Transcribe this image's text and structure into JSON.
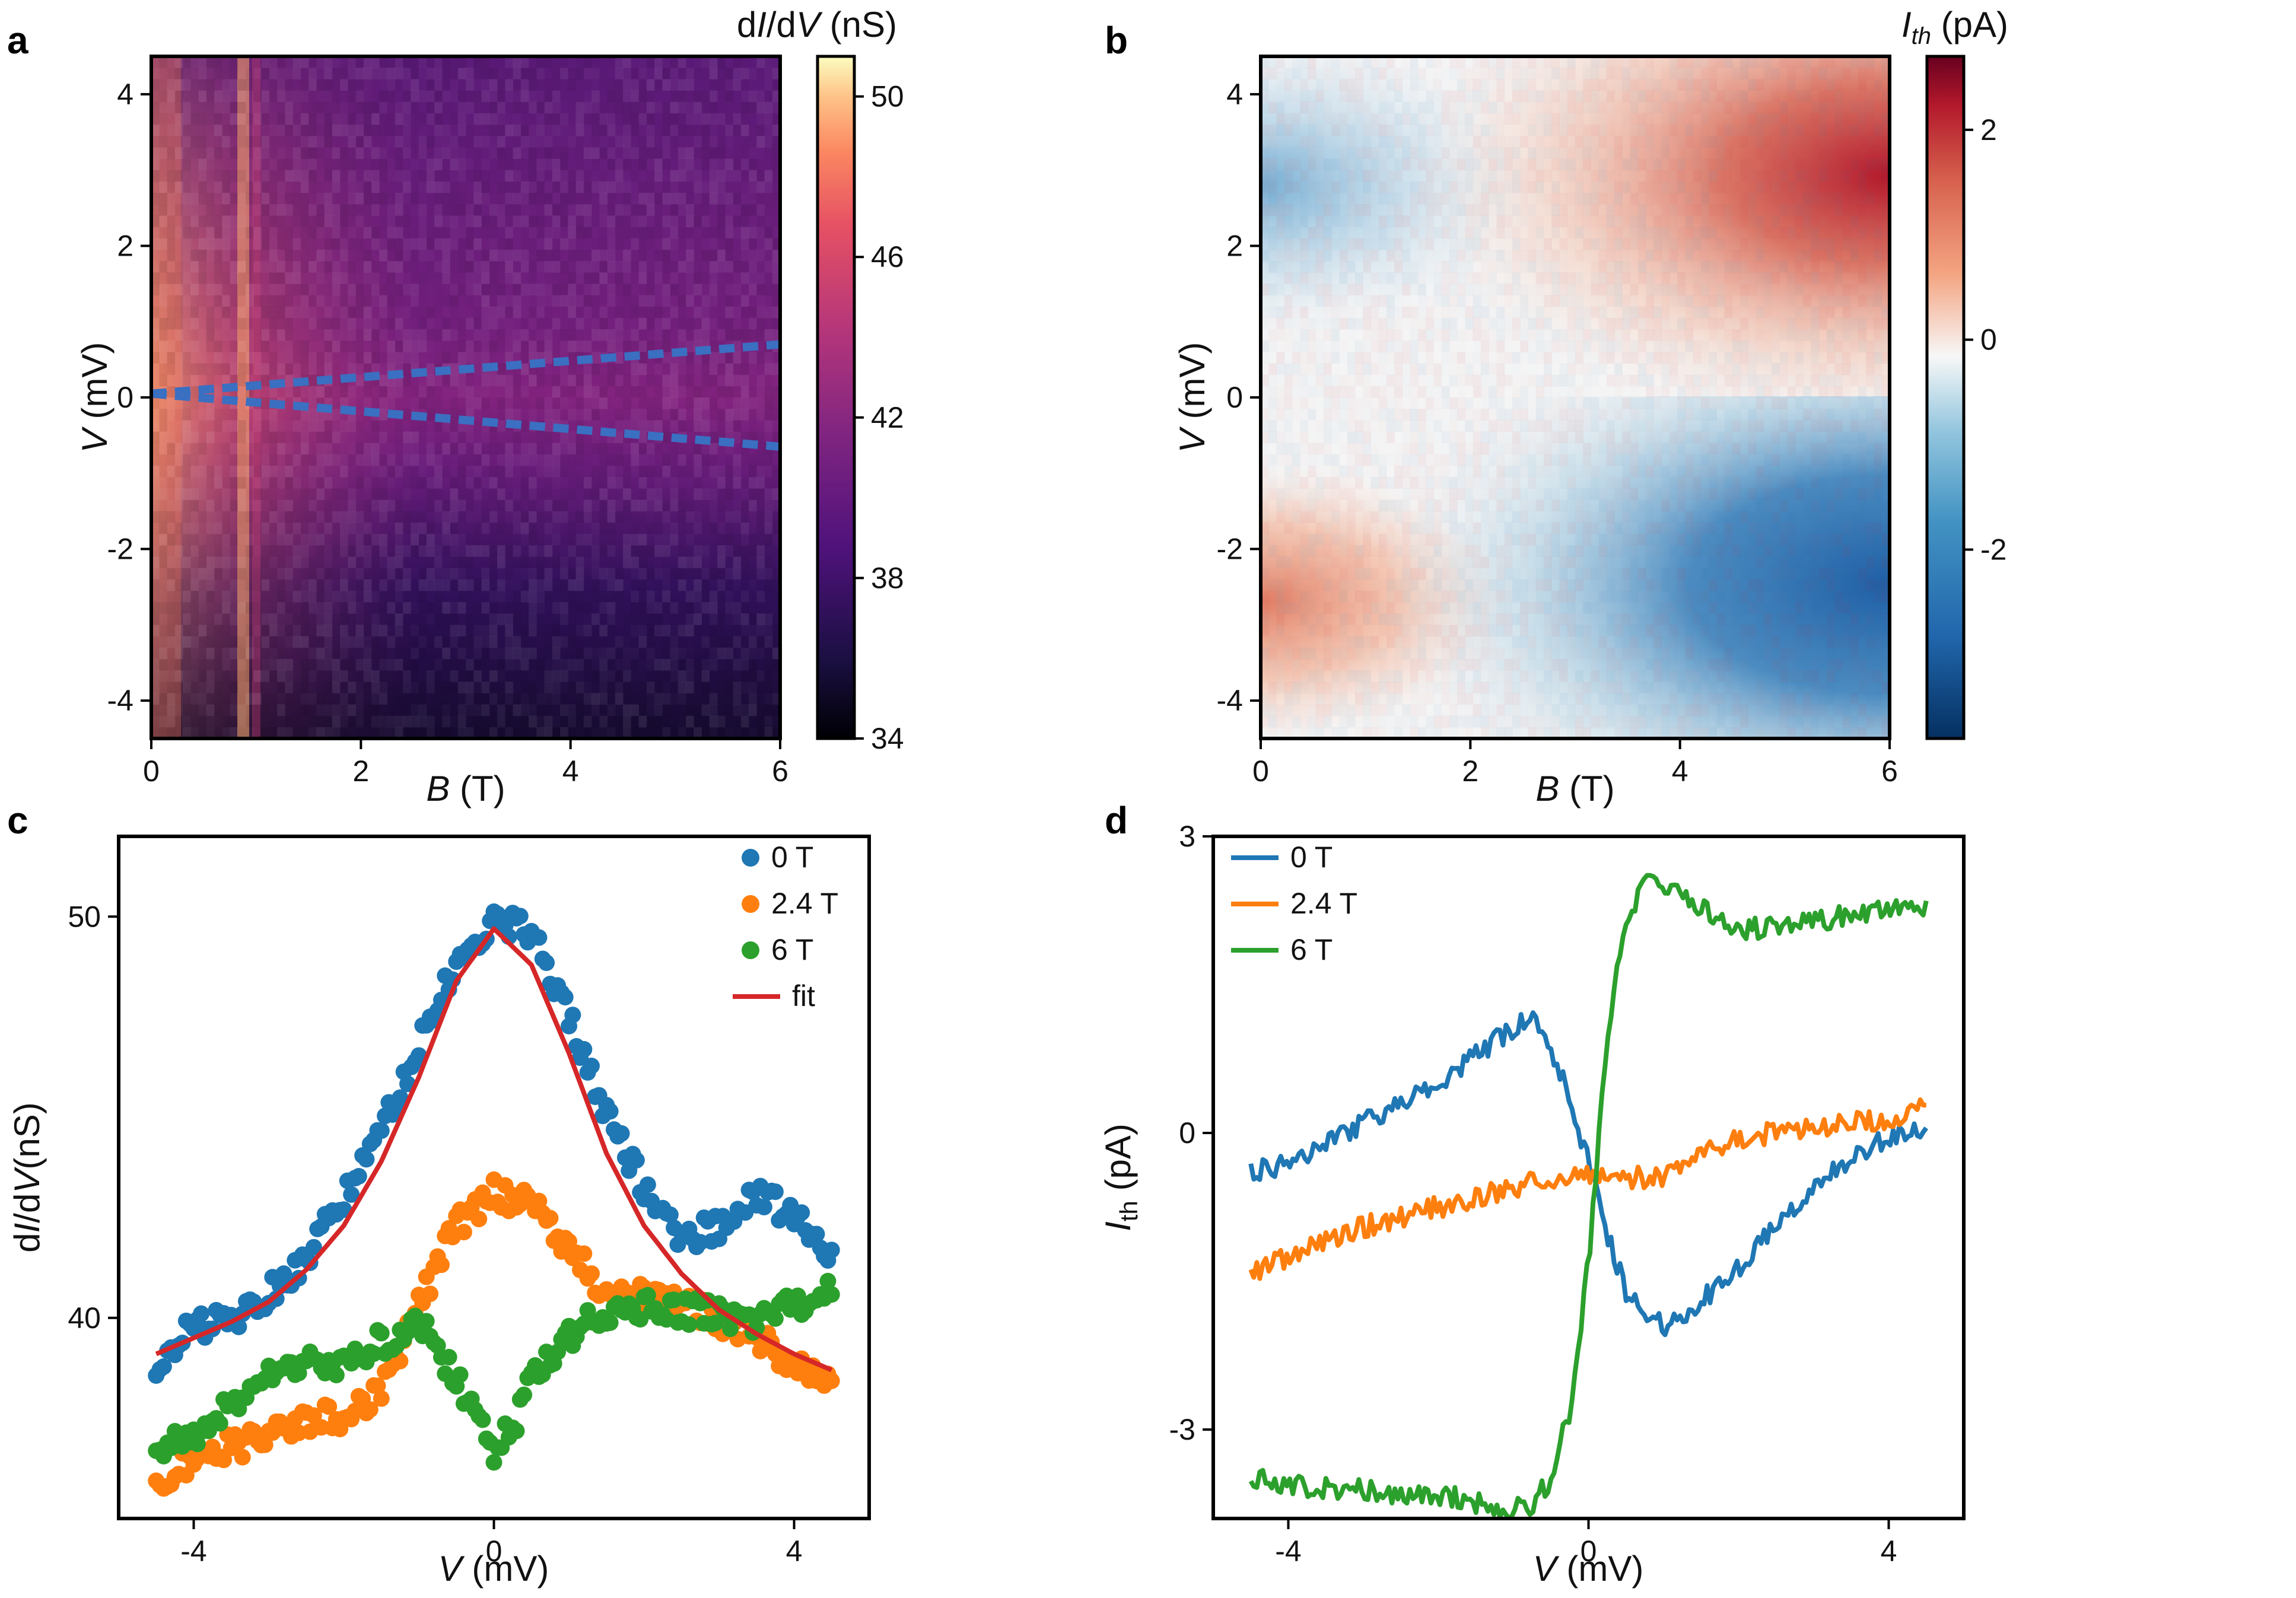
{
  "chart_data": [
    {
      "id": "a",
      "type": "heatmap",
      "panel_label": "a",
      "xlabel_var": "B",
      "xlabel_unit": " (T)",
      "ylabel_var": "V",
      "ylabel_unit": " (mV)",
      "xlim": [
        0,
        6
      ],
      "ylim": [
        -4.5,
        4.5
      ],
      "xticks": [
        0,
        2,
        4,
        6
      ],
      "xtick_labels": [
        "0",
        "2",
        "4",
        "6"
      ],
      "yticks": [
        -4,
        -2,
        0,
        2,
        4
      ],
      "ytick_labels": [
        "-4",
        "-2",
        "0",
        "2",
        "4"
      ],
      "colormap": "magma",
      "colorbar": {
        "label_pre": "d",
        "label_i": "I",
        "label_mid": "/d",
        "label_v": "V",
        "label_post": " (nS)",
        "range": [
          34,
          51
        ],
        "ticks": [
          34,
          38,
          42,
          46,
          50
        ],
        "tick_labels": [
          "34",
          "38",
          "42",
          "46",
          "50"
        ]
      },
      "peak_value_nS": 50,
      "background_value_nS": 37,
      "split_guide_lines": {
        "color": "#3a6fc1",
        "upper": {
          "x": [
            0,
            6
          ],
          "y": [
            0.05,
            0.7
          ]
        },
        "lower": {
          "x": [
            0,
            6
          ],
          "y": [
            0.05,
            -0.65
          ]
        }
      }
    },
    {
      "id": "b",
      "type": "heatmap",
      "panel_label": "b",
      "xlabel_var": "B",
      "xlabel_unit": " (T)",
      "ylabel_var": "V",
      "ylabel_unit": " (mV)",
      "xlim": [
        0,
        6
      ],
      "ylim": [
        -4.5,
        4.5
      ],
      "xticks": [
        0,
        2,
        4,
        6
      ],
      "xtick_labels": [
        "0",
        "2",
        "4",
        "6"
      ],
      "yticks": [
        -4,
        -2,
        0,
        2,
        4
      ],
      "ytick_labels": [
        "-4",
        "-2",
        "0",
        "2",
        "4"
      ],
      "colormap": "RdBu_r",
      "colorbar": {
        "label_i": "I",
        "label_sub": "th",
        "label_post": " (pA)",
        "range": [
          -3.8,
          2.7
        ],
        "ticks": [
          -2,
          0,
          2
        ],
        "tick_labels": [
          "-2",
          "0",
          "2"
        ]
      }
    },
    {
      "id": "c",
      "type": "scatter",
      "panel_label": "c",
      "xlabel_var": "V",
      "xlabel_unit": " (mV)",
      "ylabel_pre": "d",
      "ylabel_i": "I",
      "ylabel_mid": "/d",
      "ylabel_v": "V",
      "ylabel_post": "(nS)",
      "xlim": [
        -5,
        5
      ],
      "ylim": [
        35,
        52
      ],
      "xticks": [
        -4,
        0,
        4
      ],
      "xtick_labels": [
        "-4",
        "0",
        "4"
      ],
      "yticks": [
        40,
        50
      ],
      "ytick_labels": [
        "40",
        "50"
      ],
      "legend_position": "top-right",
      "series": [
        {
          "name": "0 T",
          "color": "#1f77b4",
          "kind": "points",
          "x": [
            -4.5,
            -4.0,
            -3.5,
            -3.0,
            -2.5,
            -2.0,
            -1.5,
            -1.0,
            -0.5,
            0.0,
            0.5,
            1.0,
            1.5,
            2.0,
            2.5,
            3.0,
            3.5,
            4.0,
            4.5
          ],
          "y": [
            38.8,
            39.8,
            40.0,
            40.6,
            41.5,
            43.0,
            44.6,
            46.8,
            48.8,
            49.9,
            49.6,
            47.5,
            45.0,
            43.3,
            42.0,
            42.3,
            43.0,
            42.6,
            41.6
          ]
        },
        {
          "name": "2.4 T",
          "color": "#ff7f0e",
          "kind": "points",
          "x": [
            -4.5,
            -4.0,
            -3.5,
            -3.0,
            -2.5,
            -2.0,
            -1.5,
            -1.0,
            -0.5,
            0.0,
            0.5,
            1.0,
            1.5,
            2.0,
            2.5,
            3.0,
            3.5,
            4.0,
            4.5
          ],
          "y": [
            36.0,
            36.4,
            36.8,
            37.0,
            37.4,
            37.6,
            38.2,
            40.3,
            42.3,
            43.1,
            42.8,
            41.8,
            40.6,
            40.5,
            40.3,
            40.0,
            39.5,
            38.9,
            38.4
          ]
        },
        {
          "name": "6 T",
          "color": "#2ca02c",
          "kind": "points",
          "x": [
            -4.5,
            -4.0,
            -3.5,
            -3.0,
            -2.5,
            -2.0,
            -1.5,
            -1.0,
            -0.75,
            -0.5,
            -0.25,
            0.0,
            0.25,
            0.5,
            1.0,
            1.5,
            2.0,
            2.5,
            3.0,
            3.5,
            4.0,
            4.5
          ],
          "y": [
            36.6,
            37.1,
            37.8,
            38.6,
            39.0,
            38.8,
            39.4,
            39.8,
            39.3,
            38.4,
            37.6,
            36.6,
            37.3,
            38.4,
            39.6,
            40.1,
            40.3,
            40.2,
            40.1,
            39.9,
            40.3,
            40.8
          ]
        },
        {
          "name": "fit",
          "color": "#d62728",
          "kind": "line",
          "x": [
            -4.5,
            -4.0,
            -3.5,
            -3.0,
            -2.5,
            -2.0,
            -1.5,
            -1.0,
            -0.5,
            0.0,
            0.5,
            1.0,
            1.5,
            2.0,
            2.5,
            3.0,
            3.5,
            4.0,
            4.5
          ],
          "y": [
            39.1,
            39.5,
            39.9,
            40.4,
            41.2,
            42.3,
            43.9,
            46.0,
            48.4,
            49.7,
            48.8,
            46.6,
            44.1,
            42.3,
            41.1,
            40.2,
            39.6,
            39.1,
            38.7
          ]
        }
      ]
    },
    {
      "id": "d",
      "type": "line",
      "panel_label": "d",
      "xlabel_var": "V",
      "xlabel_unit": " (mV)",
      "ylabel_i": "I",
      "ylabel_sub": "th",
      "ylabel_post": " (pA)",
      "xlim": [
        -5,
        5
      ],
      "ylim": [
        -3.9,
        3.0
      ],
      "xticks": [
        -4,
        0,
        4
      ],
      "xtick_labels": [
        "-4",
        "0",
        "4"
      ],
      "yticks": [
        -3,
        0,
        3
      ],
      "ytick_labels": [
        "-3",
        "0",
        "3"
      ],
      "legend_position": "top-left",
      "series": [
        {
          "name": "0 T",
          "color": "#1f77b4",
          "x": [
            -4.5,
            -4.0,
            -3.5,
            -3.0,
            -2.5,
            -2.0,
            -1.5,
            -1.0,
            -0.75,
            -0.5,
            -0.25,
            0.0,
            0.25,
            0.5,
            0.75,
            1.0,
            1.5,
            2.0,
            2.5,
            3.0,
            3.5,
            4.0,
            4.5
          ],
          "y": [
            -0.4,
            -0.3,
            -0.1,
            0.1,
            0.3,
            0.45,
            0.8,
            1.05,
            1.15,
            0.85,
            0.35,
            -0.3,
            -1.0,
            -1.6,
            -1.85,
            -1.95,
            -1.7,
            -1.35,
            -0.95,
            -0.55,
            -0.25,
            -0.05,
            0.05
          ]
        },
        {
          "name": "2.4 T",
          "color": "#ff7f0e",
          "x": [
            -4.5,
            -4.0,
            -3.5,
            -3.0,
            -2.5,
            -2.0,
            -1.5,
            -1.0,
            -0.5,
            0.0,
            0.5,
            1.0,
            1.5,
            2.0,
            2.5,
            3.0,
            3.5,
            4.0,
            4.5
          ],
          "y": [
            -1.4,
            -1.25,
            -1.1,
            -0.95,
            -0.85,
            -0.75,
            -0.65,
            -0.55,
            -0.45,
            -0.4,
            -0.45,
            -0.45,
            -0.2,
            -0.05,
            0.0,
            0.05,
            0.1,
            0.15,
            0.25
          ]
        },
        {
          "name": "6 T",
          "color": "#2ca02c",
          "x": [
            -4.5,
            -4.0,
            -3.5,
            -3.0,
            -2.5,
            -2.0,
            -1.5,
            -1.0,
            -0.75,
            -0.5,
            -0.25,
            0.0,
            0.25,
            0.5,
            0.75,
            1.0,
            1.5,
            2.0,
            2.5,
            3.0,
            3.5,
            4.0,
            4.5
          ],
          "y": [
            -3.5,
            -3.55,
            -3.6,
            -3.6,
            -3.65,
            -3.65,
            -3.75,
            -3.8,
            -3.75,
            -3.5,
            -2.8,
            -1.3,
            1.0,
            2.2,
            2.5,
            2.5,
            2.3,
            2.05,
            2.1,
            2.15,
            2.2,
            2.3,
            2.25
          ]
        }
      ]
    }
  ]
}
